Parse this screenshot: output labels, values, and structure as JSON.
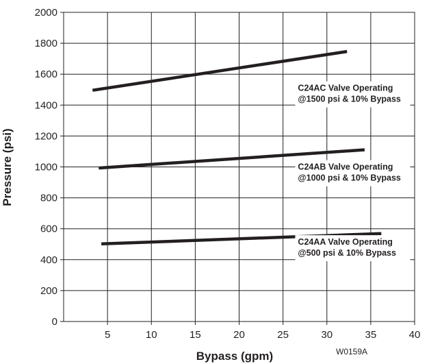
{
  "chart_data": {
    "type": "line",
    "title": "",
    "xlabel": "Bypass (gpm)",
    "ylabel": "Pressure (psi)",
    "xlim": [
      0,
      40
    ],
    "ylim": [
      0,
      2000
    ],
    "x_ticks": [
      5,
      10,
      15,
      20,
      25,
      30,
      35,
      40
    ],
    "y_ticks": [
      0,
      200,
      400,
      600,
      800,
      1000,
      1200,
      1400,
      1600,
      1800,
      2000
    ],
    "grid": true,
    "series": [
      {
        "name": "C24AC Valve Operating @1500 psi & 10% Bypass",
        "label_lines": [
          "C24AC Valve Operating",
          "@1500 psi & 10% Bypass"
        ],
        "x": [
          3.3,
          32.3
        ],
        "y": [
          1496,
          1747
        ]
      },
      {
        "name": "C24AB Valve Operating @1000 psi & 10% Bypass",
        "label_lines": [
          "C24AB Valve Operating",
          "@1000 psi & 10% Bypass"
        ],
        "x": [
          4.0,
          34.3
        ],
        "y": [
          993,
          1111
        ]
      },
      {
        "name": "C24AA Valve Operating @500 psi & 10% Bypass",
        "label_lines": [
          "C24AA Valve Operating",
          "@500 psi & 10% Bypass"
        ],
        "x": [
          4.3,
          36.2
        ],
        "y": [
          502,
          569
        ]
      }
    ],
    "annotations": [
      "W0159A"
    ]
  }
}
